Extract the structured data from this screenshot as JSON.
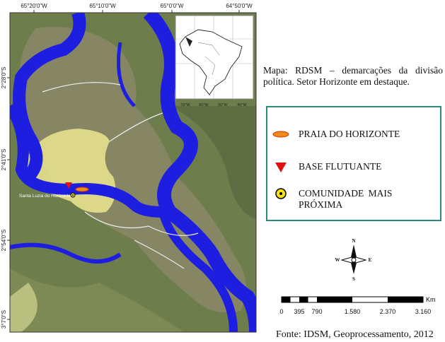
{
  "map": {
    "top_coords": [
      "65°20'0\"W",
      "65°10'0\"W",
      "65°0'0\"W",
      "64°50'0\"W"
    ],
    "left_coords": [
      "2°28'0\"S",
      "2°41'0\"S",
      "2°54'0\"S",
      "3°7'0\"S"
    ],
    "inset_coords": [
      "70°W",
      "60°W",
      "50°W",
      "40°W"
    ],
    "place_label": "Santa Luzia do Horizonte"
  },
  "caption": "Mapa: RDSM – demarcações da divisão política. Setor Horizonte em destaque.",
  "legend": {
    "items": [
      "PRAIA DO HORIZONTE",
      "BASE FLUTUANTE",
      "COMUNIDADE MAIS PRÓXIMA"
    ]
  },
  "compass": {
    "n": "N",
    "s": "S",
    "e": "E",
    "w": "W"
  },
  "scale_bar": {
    "unit": "Km",
    "labels": [
      "0",
      "395",
      "790",
      "1.580",
      "2.370",
      "3.160"
    ]
  },
  "source": "Fonte: IDSM, Geoprocessamento, 2012"
}
